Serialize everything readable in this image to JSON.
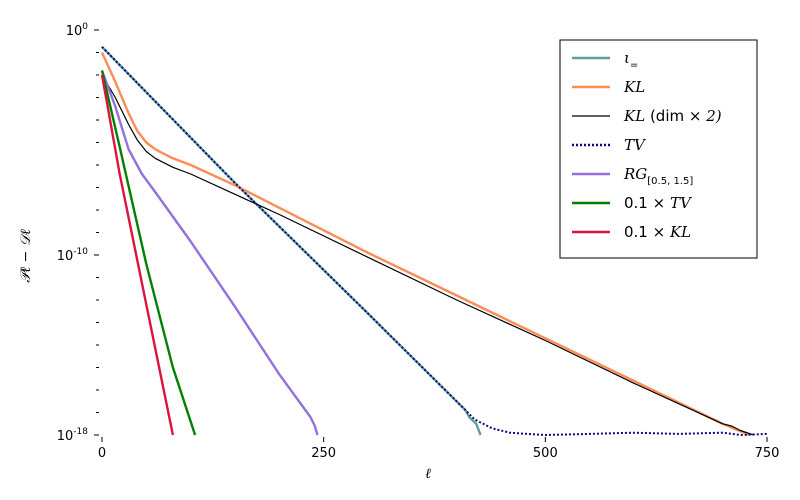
{
  "chart_data": {
    "type": "line",
    "xlabel": "ℓ",
    "ylabel": "𝒫ℓ − 𝒟ℓ",
    "yscale": "log",
    "xlim": [
      0,
      750
    ],
    "ylim": [
      1e-18,
      1
    ],
    "xticks": [
      {
        "value": 0,
        "label": "0"
      },
      {
        "value": 250,
        "label": "250"
      },
      {
        "value": 500,
        "label": "500"
      },
      {
        "value": 750,
        "label": "750"
      }
    ],
    "yticks": [
      {
        "value": 0,
        "base": "10",
        "exp": "0"
      },
      {
        "value": -10,
        "base": "10",
        "exp": "-10"
      },
      {
        "value": -18,
        "base": "10",
        "exp": "-18"
      }
    ],
    "yminor_exponents": [
      -1,
      -2,
      -3,
      -4,
      -5,
      -6,
      -7,
      -8,
      -9,
      -11,
      -12,
      -13,
      -14,
      -15,
      -16,
      -17
    ],
    "grid": false,
    "legend_position": "top-right",
    "series": [
      {
        "name": "ι=",
        "color": "#5f9e9e",
        "width": 2.4,
        "dash": "",
        "x": [
          0,
          150,
          300,
          410,
          414,
          422,
          425,
          427
        ],
        "log10y": [
          -0.75,
          -6.8,
          -12.6,
          -16.9,
          -17.2,
          -17.5,
          -17.8,
          -18.0
        ]
      },
      {
        "name": "KL",
        "color": "#ff8c55",
        "width": 2.4,
        "dash": "",
        "x": [
          0,
          15,
          30,
          40,
          50,
          60,
          80,
          100,
          150,
          200,
          300,
          400,
          500,
          600,
          700,
          730
        ],
        "log10y": [
          -1.0,
          -2.3,
          -3.7,
          -4.5,
          -5.0,
          -5.3,
          -5.7,
          -6.0,
          -6.9,
          -7.9,
          -9.9,
          -11.8,
          -13.7,
          -15.6,
          -17.5,
          -18.0
        ]
      },
      {
        "name": "KL (dim × 2)",
        "color": "#000000",
        "width": 1.2,
        "dash": "",
        "x": [
          0,
          15,
          30,
          40,
          50,
          60,
          80,
          100,
          150,
          200,
          300,
          400,
          500,
          600,
          700,
          710,
          720,
          735
        ],
        "log10y": [
          -2.0,
          -3.0,
          -4.2,
          -4.9,
          -5.4,
          -5.7,
          -6.1,
          -6.4,
          -7.3,
          -8.2,
          -10.1,
          -12.0,
          -13.8,
          -15.7,
          -17.5,
          -17.6,
          -17.8,
          -18.0
        ]
      },
      {
        "name": "TV",
        "color": "#0a0a80",
        "width": 2.0,
        "dash": "2,2",
        "x": [
          0,
          150,
          300,
          410,
          420,
          440,
          460,
          480,
          500,
          550,
          600,
          650,
          700,
          720,
          750
        ],
        "log10y": [
          -0.75,
          -6.8,
          -12.6,
          -16.9,
          -17.3,
          -17.7,
          -17.9,
          -17.95,
          -18.0,
          -17.95,
          -17.9,
          -17.95,
          -17.9,
          -18.0,
          -17.95
        ]
      },
      {
        "name": "RG[0.5, 1.5]",
        "color": "#9370db",
        "width": 2.4,
        "dash": "",
        "x": [
          0,
          15,
          30,
          45,
          60,
          100,
          150,
          200,
          235,
          240,
          243
        ],
        "log10y": [
          -1.8,
          -3.4,
          -5.3,
          -6.4,
          -7.2,
          -9.4,
          -12.3,
          -15.3,
          -17.2,
          -17.6,
          -18.0
        ]
      },
      {
        "name": "0.1 × TV",
        "color": "#008000",
        "width": 2.4,
        "dash": "",
        "x": [
          0,
          20,
          50,
          80,
          105
        ],
        "log10y": [
          -1.8,
          -5.2,
          -10.4,
          -15.0,
          -18.0
        ]
      },
      {
        "name": "0.1 × KL",
        "color": "#dc143c",
        "width": 2.4,
        "dash": "",
        "x": [
          0,
          20,
          50,
          80
        ],
        "log10y": [
          -2.0,
          -6.4,
          -12.2,
          -18.0
        ]
      }
    ],
    "legend": {
      "entries": [
        {
          "italic": "ι",
          "sub": "=",
          "upright": "",
          "suffix": "",
          "color": "#5f9e9e",
          "dash": ""
        },
        {
          "italic": "KL",
          "sub": "",
          "upright": "",
          "suffix": "",
          "color": "#ff8c55",
          "dash": ""
        },
        {
          "italic": "KL",
          "sub": "",
          "upright": " (dim × ",
          "suffix": "2)",
          "color": "#000000",
          "dash": ""
        },
        {
          "italic": "TV",
          "sub": "",
          "upright": "",
          "suffix": "",
          "color": "#0a0a80",
          "dash": "2,2"
        },
        {
          "italic": "RG",
          "sub": "[0.5, 1.5]",
          "upright": "",
          "suffix": "",
          "color": "#9370db",
          "dash": ""
        },
        {
          "italic": "TV",
          "prefix": "0.1 × ",
          "sub": "",
          "upright": "",
          "suffix": "",
          "color": "#008000",
          "dash": ""
        },
        {
          "italic": "KL",
          "prefix": "0.1 × ",
          "sub": "",
          "upright": "",
          "suffix": "",
          "color": "#dc143c",
          "dash": ""
        }
      ]
    }
  }
}
